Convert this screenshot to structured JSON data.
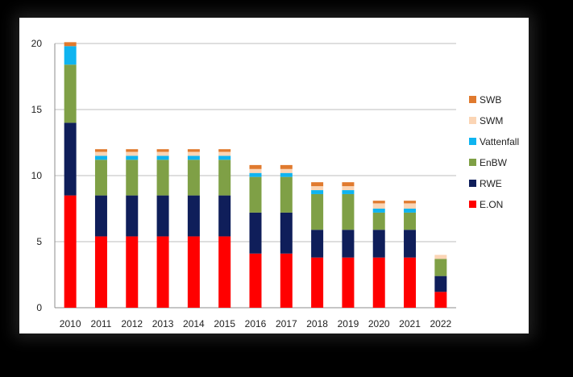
{
  "chart_data": {
    "type": "bar",
    "stacked": true,
    "categories": [
      "2010",
      "2011",
      "2012",
      "2013",
      "2014",
      "2015",
      "2016",
      "2017",
      "2018",
      "2019",
      "2020",
      "2021",
      "2022"
    ],
    "series": [
      {
        "name": "E.ON",
        "color": "#ff0000",
        "values": [
          8.5,
          5.4,
          5.4,
          5.4,
          5.4,
          5.4,
          4.1,
          4.1,
          3.8,
          3.8,
          3.8,
          3.8,
          1.2
        ]
      },
      {
        "name": "RWE",
        "color": "#0f1e5a",
        "values": [
          5.5,
          3.1,
          3.1,
          3.1,
          3.1,
          3.1,
          3.1,
          3.1,
          2.1,
          2.1,
          2.1,
          2.1,
          1.2
        ]
      },
      {
        "name": "EnBW",
        "color": "#7fa046",
        "values": [
          4.4,
          2.7,
          2.7,
          2.7,
          2.7,
          2.7,
          2.7,
          2.7,
          2.7,
          2.7,
          1.3,
          1.3,
          1.3
        ]
      },
      {
        "name": "Vattenfall",
        "color": "#0fb4f0",
        "values": [
          1.4,
          0.3,
          0.3,
          0.3,
          0.3,
          0.3,
          0.3,
          0.3,
          0.3,
          0.3,
          0.3,
          0.3,
          0.0
        ]
      },
      {
        "name": "SWM",
        "color": "#fbd5b5",
        "values": [
          0.0,
          0.3,
          0.3,
          0.3,
          0.3,
          0.3,
          0.3,
          0.3,
          0.3,
          0.3,
          0.4,
          0.4,
          0.3
        ]
      },
      {
        "name": "SWB",
        "color": "#e07a2e",
        "values": [
          0.3,
          0.2,
          0.2,
          0.2,
          0.2,
          0.2,
          0.3,
          0.3,
          0.3,
          0.3,
          0.2,
          0.2,
          0.0
        ]
      }
    ],
    "legend_order": [
      "SWB",
      "SWM",
      "Vattenfall",
      "EnBW",
      "RWE",
      "E.ON"
    ],
    "ylim": [
      0,
      20
    ],
    "yticks": [
      0,
      5,
      10,
      15,
      20
    ],
    "grid": true,
    "legend_position": "right",
    "title": "",
    "xlabel": "",
    "ylabel": ""
  }
}
